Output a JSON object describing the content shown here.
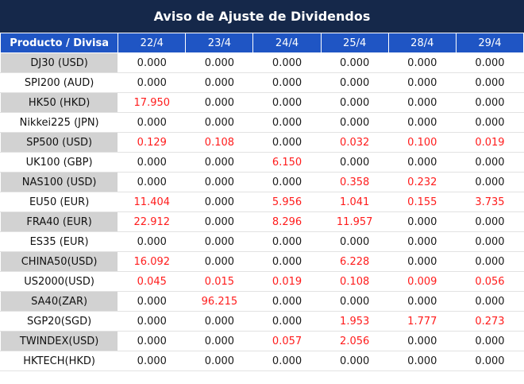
{
  "title": "Aviso de Ajuste de Dividendos",
  "header": {
    "product_label": "Producto / Divisa",
    "dates": [
      "22/4",
      "23/4",
      "24/4",
      "25/4",
      "28/4",
      "29/4"
    ]
  },
  "colors": {
    "title_bg": "#15284a",
    "header_bg": "#1f55c4",
    "shaded_row": "#d2d2d2",
    "highlight_value": "#ff1c1c"
  },
  "rows": [
    {
      "product": "DJ30 (USD)",
      "values": [
        "0.000",
        "0.000",
        "0.000",
        "0.000",
        "0.000",
        "0.000"
      ]
    },
    {
      "product": "SPI200 (AUD)",
      "values": [
        "0.000",
        "0.000",
        "0.000",
        "0.000",
        "0.000",
        "0.000"
      ]
    },
    {
      "product": "HK50 (HKD)",
      "values": [
        "17.950",
        "0.000",
        "0.000",
        "0.000",
        "0.000",
        "0.000"
      ]
    },
    {
      "product": "Nikkei225 (JPN)",
      "values": [
        "0.000",
        "0.000",
        "0.000",
        "0.000",
        "0.000",
        "0.000"
      ]
    },
    {
      "product": "SP500 (USD)",
      "values": [
        "0.129",
        "0.108",
        "0.000",
        "0.032",
        "0.100",
        "0.019"
      ]
    },
    {
      "product": "UK100 (GBP)",
      "values": [
        "0.000",
        "0.000",
        "6.150",
        "0.000",
        "0.000",
        "0.000"
      ]
    },
    {
      "product": "NAS100 (USD)",
      "values": [
        "0.000",
        "0.000",
        "0.000",
        "0.358",
        "0.232",
        "0.000"
      ]
    },
    {
      "product": "EU50 (EUR)",
      "values": [
        "11.404",
        "0.000",
        "5.956",
        "1.041",
        "0.155",
        "3.735"
      ]
    },
    {
      "product": "FRA40 (EUR)",
      "values": [
        "22.912",
        "0.000",
        "8.296",
        "11.957",
        "0.000",
        "0.000"
      ]
    },
    {
      "product": "ES35 (EUR)",
      "values": [
        "0.000",
        "0.000",
        "0.000",
        "0.000",
        "0.000",
        "0.000"
      ]
    },
    {
      "product": "CHINA50(USD)",
      "values": [
        "16.092",
        "0.000",
        "0.000",
        "6.228",
        "0.000",
        "0.000"
      ]
    },
    {
      "product": "US2000(USD)",
      "values": [
        "0.045",
        "0.015",
        "0.019",
        "0.108",
        "0.009",
        "0.056"
      ]
    },
    {
      "product": "SA40(ZAR)",
      "values": [
        "0.000",
        "96.215",
        "0.000",
        "0.000",
        "0.000",
        "0.000"
      ]
    },
    {
      "product": "SGP20(SGD)",
      "values": [
        "0.000",
        "0.000",
        "0.000",
        "1.953",
        "1.777",
        "0.273"
      ]
    },
    {
      "product": "TWINDEX(USD)",
      "values": [
        "0.000",
        "0.000",
        "0.057",
        "2.056",
        "0.000",
        "0.000"
      ]
    },
    {
      "product": "HKTECH(HKD)",
      "values": [
        "0.000",
        "0.000",
        "0.000",
        "0.000",
        "0.000",
        "0.000"
      ]
    }
  ]
}
